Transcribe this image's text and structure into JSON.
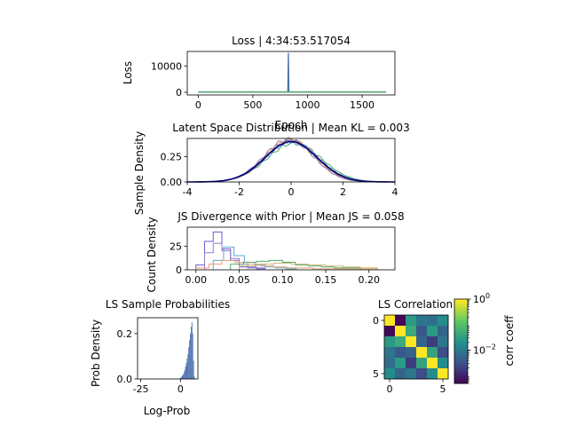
{
  "chart_data": [
    {
      "id": "loss",
      "type": "line",
      "title": "Loss | 4:34:53.517054",
      "xlabel": "Epoch",
      "ylabel": "Loss",
      "xlim": [
        -100,
        1800
      ],
      "ylim": [
        -1000,
        15500
      ],
      "xticks": [
        0,
        500,
        1000,
        1500
      ],
      "yticks": [
        0,
        10000
      ],
      "series": [
        {
          "color": "#4c72b0",
          "x": [
            0,
            820,
            825,
            830,
            1720
          ],
          "y": [
            150,
            150,
            15000,
            150,
            150
          ]
        },
        {
          "color": "#55a868",
          "x": [
            0,
            1720
          ],
          "y": [
            100,
            100
          ]
        }
      ]
    },
    {
      "id": "latent",
      "type": "line",
      "title": "Latent Space Distribution | Mean KL = 0.003",
      "xlabel": "",
      "ylabel": "Sample Density",
      "xlim": [
        -4,
        4
      ],
      "ylim": [
        0,
        0.43
      ],
      "xticks": [
        -4,
        -2,
        0,
        2,
        4
      ],
      "yticks": [
        0.0,
        0.25
      ],
      "ytick_labels": [
        "0.00",
        "0.25"
      ],
      "prior": {
        "color": "#000080",
        "mean": 0,
        "std": 1
      },
      "series": [
        {
          "color": "#e07b39",
          "mean": -0.05,
          "std": 0.98
        },
        {
          "color": "#55a868",
          "mean": 0.12,
          "std": 1.04
        },
        {
          "color": "#8172b2",
          "mean": -0.1,
          "std": 0.95
        },
        {
          "color": "#64b5cd",
          "mean": 0.05,
          "std": 1.02
        },
        {
          "color": "#dd8452",
          "mean": 0.0,
          "std": 0.97
        },
        {
          "color": "#4c72b0",
          "mean": 0.02,
          "std": 0.99
        }
      ]
    },
    {
      "id": "js",
      "type": "bar",
      "title": "JS Divergence with Prior | Mean JS = 0.058",
      "xlabel": "",
      "ylabel": "Count Density",
      "xlim": [
        -0.01,
        0.23
      ],
      "ylim": [
        0,
        45
      ],
      "xticks": [
        0.0,
        0.05,
        0.1,
        0.15,
        0.2
      ],
      "xtick_labels": [
        "0.00",
        "0.05",
        "0.10",
        "0.15",
        "0.20"
      ],
      "yticks": [
        0,
        25
      ],
      "series": [
        {
          "color": "#6a5acd",
          "start": 0.0,
          "width": 0.01,
          "values": [
            5,
            30,
            40,
            22,
            10,
            3,
            2,
            1
          ]
        },
        {
          "color": "#8a7fd0",
          "start": 0.01,
          "width": 0.01,
          "values": [
            18,
            28,
            20,
            12,
            6,
            3,
            2
          ]
        },
        {
          "color": "#5fa8d3",
          "start": 0.02,
          "width": 0.012,
          "values": [
            10,
            24,
            15,
            8,
            5,
            3,
            2,
            1
          ]
        },
        {
          "color": "#e8a070",
          "start": 0.0,
          "width": 0.015,
          "values": [
            2,
            6,
            10,
            8,
            6,
            4,
            3,
            2,
            2,
            1,
            1,
            1,
            1,
            1
          ]
        },
        {
          "color": "#55a868",
          "start": 0.04,
          "width": 0.015,
          "values": [
            6,
            8,
            9,
            10,
            8,
            5,
            4,
            3,
            2,
            2
          ]
        },
        {
          "color": "#ccb974",
          "start": 0.05,
          "width": 0.02,
          "values": [
            4,
            6,
            7,
            6,
            5,
            4,
            3,
            2
          ]
        }
      ]
    },
    {
      "id": "probs",
      "type": "bar",
      "title": "LS Sample Probabilities",
      "xlabel": "Log-Prob",
      "ylabel": "Prob Density",
      "xlim": [
        -27,
        11
      ],
      "ylim": [
        0,
        0.27
      ],
      "xticks": [
        -25,
        0
      ],
      "yticks": [
        0.0,
        0.2
      ],
      "ytick_labels": [
        "0.0",
        "0.2"
      ],
      "color": "#4c72b0",
      "bins_start": -0.5,
      "bin_width": 0.5,
      "values": [
        0.003,
        0.006,
        0.01,
        0.015,
        0.02,
        0.03,
        0.04,
        0.055,
        0.07,
        0.09,
        0.11,
        0.14,
        0.17,
        0.2,
        0.23,
        0.25,
        0.2,
        0.08,
        0.01
      ]
    },
    {
      "id": "corr",
      "type": "heatmap",
      "title": "LS Correlation",
      "colorbar_label": "corr coeff",
      "colorbar_ticks": [
        {
          "value": 1,
          "base": "10",
          "exp": "0"
        },
        {
          "value": 0.01,
          "base": "10",
          "exp": "−2"
        }
      ],
      "color_scale": "log",
      "vmin": 0.0005,
      "vmax": 1,
      "xticks": [
        0,
        5
      ],
      "yticks": [
        0,
        5
      ],
      "matrix": [
        [
          1.0,
          0.0006,
          0.03,
          0.01,
          0.008,
          0.02
        ],
        [
          0.0006,
          1.0,
          0.05,
          0.004,
          0.03,
          0.006
        ],
        [
          0.03,
          0.05,
          1.0,
          0.006,
          0.002,
          0.01
        ],
        [
          0.01,
          0.004,
          0.006,
          1.0,
          0.04,
          0.003
        ],
        [
          0.008,
          0.03,
          0.002,
          0.04,
          1.0,
          0.02
        ],
        [
          0.02,
          0.006,
          0.01,
          0.003,
          0.02,
          1.0
        ]
      ]
    }
  ]
}
